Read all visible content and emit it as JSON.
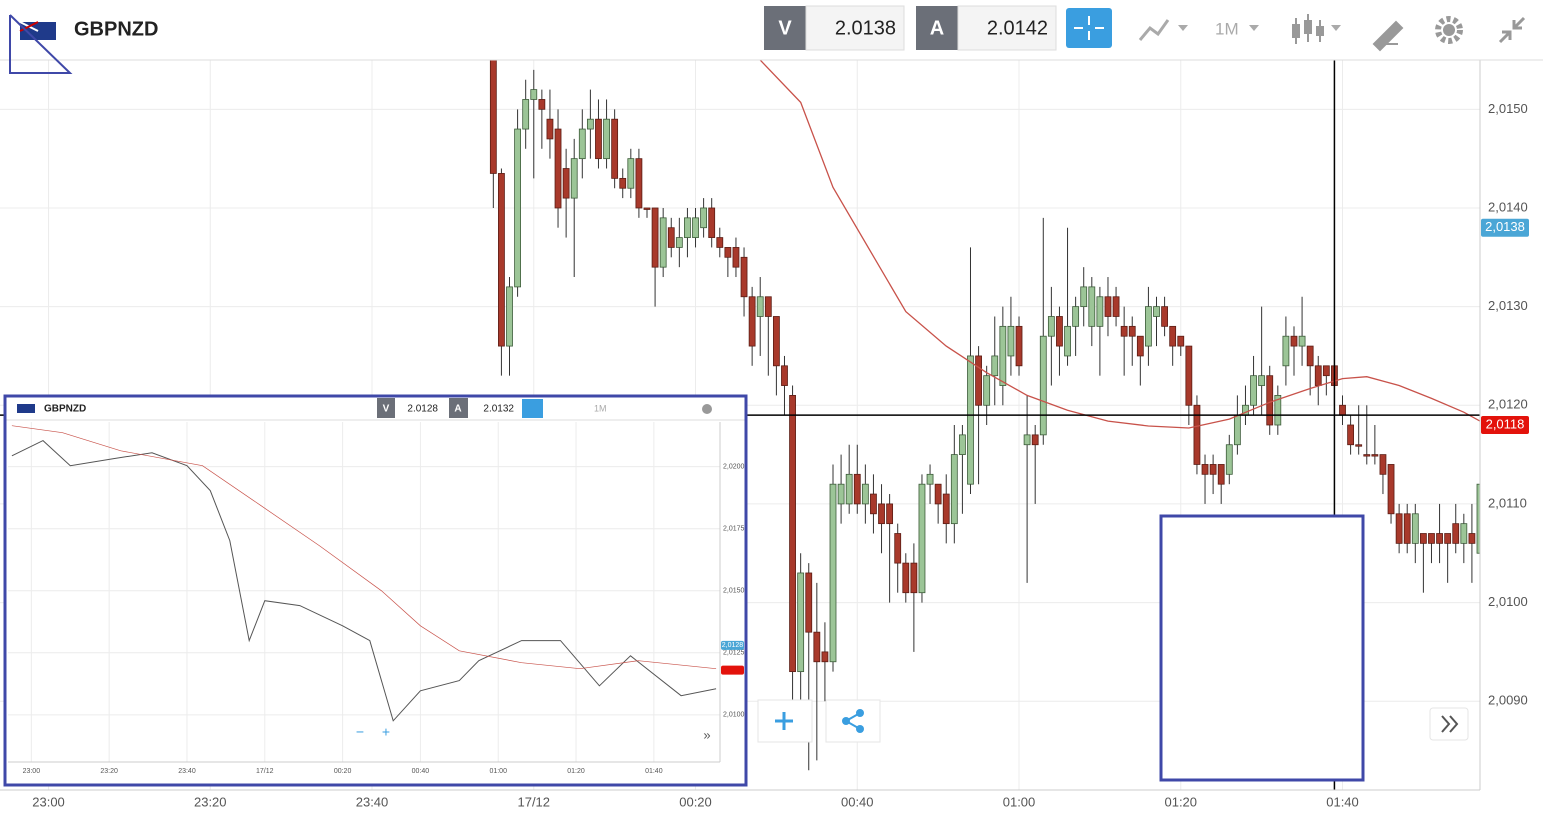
{
  "chart_data": [
    {
      "type": "candlestick",
      "symbol": "GBPNZD",
      "bid_label": "V",
      "bid": 2.0138,
      "ask_label": "A",
      "ask": 2.0142,
      "timeframe": "1M",
      "x": [
        "23:55",
        "23:56",
        "23:57",
        "23:58",
        "23:59",
        "00:00",
        "00:01",
        "00:02",
        "00:03",
        "00:04",
        "00:05",
        "00:06",
        "00:07",
        "00:08",
        "00:09",
        "00:10",
        "00:11",
        "00:12",
        "00:13",
        "00:14",
        "00:15",
        "00:16",
        "00:17",
        "00:18",
        "00:19",
        "00:20",
        "00:21",
        "00:22",
        "00:23",
        "00:24",
        "00:25",
        "00:26",
        "00:27",
        "00:28",
        "00:29",
        "00:30",
        "00:31",
        "00:32",
        "00:33",
        "00:34",
        "00:35",
        "00:36",
        "00:37",
        "00:38",
        "00:39",
        "00:40",
        "00:41",
        "00:42",
        "00:43",
        "00:44",
        "00:45",
        "00:46",
        "00:47",
        "00:48",
        "00:49",
        "00:50",
        "00:51",
        "00:52",
        "00:53",
        "00:54",
        "00:55",
        "00:56",
        "00:57",
        "00:58",
        "00:59",
        "01:00",
        "01:01",
        "01:02",
        "01:03",
        "01:04",
        "01:05",
        "01:06",
        "01:07",
        "01:08",
        "01:09",
        "01:10",
        "01:11",
        "01:12",
        "01:13",
        "01:14",
        "01:15",
        "01:16",
        "01:17",
        "01:18",
        "01:19",
        "01:20",
        "01:21",
        "01:22",
        "01:23",
        "01:24",
        "01:25",
        "01:26",
        "01:27",
        "01:28",
        "01:29",
        "01:30",
        "01:31",
        "01:32",
        "01:33",
        "01:34",
        "01:35",
        "01:36",
        "01:37",
        "01:38",
        "01:39",
        "01:40",
        "01:41",
        "01:42",
        "01:43",
        "01:44",
        "01:45",
        "01:46",
        "01:47",
        "01:48",
        "01:49",
        "01:50",
        "01:51",
        "01:52",
        "01:53",
        "01:54",
        "01:55",
        "01:56",
        "01:57"
      ],
      "open": [
        2.0155,
        2.01435,
        2.0126,
        2.0132,
        2.0148,
        2.0151,
        2.0151,
        2.0149,
        2.0148,
        2.0144,
        2.0141,
        2.0145,
        2.0148,
        2.0149,
        2.0145,
        2.0149,
        2.0143,
        2.0142,
        2.0145,
        2.014,
        2.014,
        2.0134,
        2.0138,
        2.0136,
        2.0137,
        2.0137,
        2.0138,
        2.014,
        2.0137,
        2.0136,
        2.0136,
        2.0135,
        2.0131,
        2.0129,
        2.0131,
        2.0129,
        2.0124,
        2.0121,
        2.0093,
        2.0103,
        2.0097,
        2.0095,
        2.0094,
        2.011,
        2.011,
        2.0113,
        2.011,
        2.0111,
        2.011,
        2.011,
        2.0107,
        2.0104,
        2.0104,
        2.0101,
        2.0112,
        2.0112,
        2.0111,
        2.0108,
        2.0115,
        2.0112,
        2.0125,
        2.012,
        2.0123,
        2.0122,
        2.0125,
        2.0128,
        2.0116,
        2.0117,
        2.0117,
        2.0127,
        2.0129,
        2.0125,
        2.0128,
        2.013,
        2.0128,
        2.0128,
        2.0131,
        2.0131,
        2.0128,
        2.0128,
        2.0127,
        2.0126,
        2.0129,
        2.013,
        2.0128,
        2.0127,
        2.0126,
        2.012,
        2.0114,
        2.0114,
        2.0114,
        2.0113,
        2.0116,
        2.0119,
        2.012,
        2.0122,
        2.0123,
        2.0118,
        2.0124,
        2.0127,
        2.0126,
        2.0126,
        2.0124,
        2.0124,
        2.0124,
        2.012,
        2.0118,
        2.0116,
        2.0115,
        2.0115,
        2.0115,
        2.0114,
        2.0109,
        2.0109,
        2.0106,
        2.0107,
        2.0107,
        2.0107,
        2.0107,
        2.0108,
        2.0106,
        2.0107,
        2.0105
      ],
      "high": [
        2.0155,
        2.0144,
        2.0133,
        2.015,
        2.0153,
        2.0154,
        2.0152,
        2.0152,
        2.015,
        2.0146,
        2.0147,
        2.015,
        2.0152,
        2.0151,
        2.0151,
        2.015,
        2.0144,
        2.0146,
        2.0146,
        2.014,
        2.014,
        2.014,
        2.0139,
        2.0139,
        2.014,
        2.014,
        2.0141,
        2.0141,
        2.0138,
        2.0136,
        2.0137,
        2.0136,
        2.0132,
        2.0133,
        2.0131,
        2.0129,
        2.0125,
        2.0122,
        2.0105,
        2.0104,
        2.0102,
        2.0098,
        2.0114,
        2.0115,
        2.0116,
        2.0116,
        2.0114,
        2.0113,
        2.0112,
        2.0111,
        2.0108,
        2.0105,
        2.0106,
        2.0113,
        2.0114,
        2.0112,
        2.0113,
        2.0118,
        2.0118,
        2.0136,
        2.0126,
        2.0124,
        2.0129,
        2.013,
        2.0131,
        2.0129,
        2.0121,
        2.0118,
        2.0139,
        2.0132,
        2.013,
        2.0138,
        2.0131,
        2.0134,
        2.0133,
        2.0132,
        2.0133,
        2.0132,
        2.013,
        2.0129,
        2.0127,
        2.0132,
        2.0131,
        2.0131,
        2.0128,
        2.0127,
        2.0126,
        2.0121,
        2.0115,
        2.0115,
        2.0114,
        2.0117,
        2.0121,
        2.0122,
        2.0125,
        2.013,
        2.0124,
        2.0122,
        2.0129,
        2.0128,
        2.0131,
        2.0126,
        2.0125,
        2.0124,
        2.0124,
        2.0121,
        2.0119,
        2.012,
        2.012,
        2.0118,
        2.0115,
        2.0114,
        2.011,
        2.011,
        2.011,
        2.0107,
        2.0107,
        2.011,
        2.0107,
        2.011,
        2.0109,
        2.011,
        2.0115
      ],
      "low": [
        2.014,
        2.0123,
        2.0123,
        2.0131,
        2.0146,
        2.0143,
        2.0146,
        2.0145,
        2.0138,
        2.0137,
        2.0133,
        2.0143,
        2.0145,
        2.0144,
        2.0144,
        2.0142,
        2.0141,
        2.0141,
        2.0139,
        2.0139,
        2.013,
        2.0133,
        2.0135,
        2.0134,
        2.0135,
        2.0136,
        2.0137,
        2.0136,
        2.0135,
        2.0133,
        2.0133,
        2.0129,
        2.0124,
        2.0125,
        2.0123,
        2.0121,
        2.0119,
        2.0087,
        2.0088,
        2.0083,
        2.0084,
        2.009,
        2.0093,
        2.0108,
        2.0109,
        2.0109,
        2.0108,
        2.0107,
        2.0105,
        2.01,
        2.0101,
        2.01,
        2.0095,
        2.01,
        2.011,
        2.0108,
        2.0106,
        2.0106,
        2.0109,
        2.0111,
        2.0112,
        2.0118,
        2.012,
        2.012,
        2.0123,
        2.0123,
        2.0102,
        2.011,
        2.0116,
        2.0122,
        2.0123,
        2.0124,
        2.0125,
        2.0128,
        2.0126,
        2.0123,
        2.0127,
        2.0128,
        2.0123,
        2.0124,
        2.0122,
        2.0124,
        2.0126,
        2.0127,
        2.0124,
        2.0125,
        2.0118,
        2.0113,
        2.011,
        2.0111,
        2.011,
        2.0112,
        2.0115,
        2.0118,
        2.0119,
        2.0119,
        2.0117,
        2.0117,
        2.0122,
        2.0123,
        2.0124,
        2.0121,
        2.012,
        2.0121,
        2.012,
        2.0118,
        2.0115,
        2.0115,
        2.0114,
        2.0114,
        2.0111,
        2.0108,
        2.0105,
        2.0105,
        2.0104,
        2.0101,
        2.0104,
        2.0104,
        2.0102,
        2.0105,
        2.0104,
        2.0102,
        2.0104
      ],
      "close": [
        2.01435,
        2.0126,
        2.0132,
        2.0148,
        2.0151,
        2.0152,
        2.015,
        2.0147,
        2.014,
        2.0141,
        2.0145,
        2.0148,
        2.0149,
        2.0145,
        2.0149,
        2.0143,
        2.0142,
        2.0145,
        2.014,
        2.014,
        2.0134,
        2.0139,
        2.0136,
        2.0137,
        2.0139,
        2.0139,
        2.014,
        2.0137,
        2.0136,
        2.0135,
        2.0134,
        2.0131,
        2.0126,
        2.0131,
        2.0129,
        2.0124,
        2.0122,
        2.0093,
        2.0103,
        2.0097,
        2.0094,
        2.0094,
        2.0112,
        2.0112,
        2.0113,
        2.011,
        2.0112,
        2.0109,
        2.0108,
        2.0108,
        2.0104,
        2.0101,
        2.0101,
        2.0112,
        2.0113,
        2.011,
        2.0108,
        2.0115,
        2.0117,
        2.0125,
        2.012,
        2.0123,
        2.0125,
        2.0128,
        2.0128,
        2.0124,
        2.0117,
        2.0116,
        2.0127,
        2.0129,
        2.0126,
        2.0128,
        2.013,
        2.0132,
        2.0132,
        2.0131,
        2.0129,
        2.0129,
        2.0127,
        2.0127,
        2.0125,
        2.013,
        2.013,
        2.0128,
        2.0126,
        2.0126,
        2.012,
        2.0114,
        2.0113,
        2.0113,
        2.0112,
        2.0116,
        2.0119,
        2.012,
        2.0123,
        2.0123,
        2.0118,
        2.0121,
        2.0127,
        2.0126,
        2.0127,
        2.0124,
        2.0122,
        2.0123,
        2.0122,
        2.0119,
        2.0116,
        2.0116,
        2.0115,
        2.0115,
        2.0113,
        2.0109,
        2.0106,
        2.0106,
        2.0109,
        2.0106,
        2.0106,
        2.0106,
        2.0106,
        2.0106,
        2.0108,
        2.0106,
        2.0112
      ],
      "up_color": "#9cc597",
      "down_color": "#a8392b",
      "ma": {
        "color": "#c8524a",
        "x": [
          "00:28",
          "00:33",
          "00:37",
          "00:42",
          "00:46",
          "00:51",
          "00:56",
          "01:01",
          "01:06",
          "01:11",
          "01:16",
          "01:21",
          "01:26",
          "01:31",
          "01:36",
          "01:40",
          "01:43",
          "01:47",
          "01:51",
          "01:55",
          "01:57"
        ],
        "values": [
          2.0155,
          2.01507,
          2.01421,
          2.01351,
          2.01295,
          2.0126,
          2.01233,
          2.0121,
          2.01195,
          2.01184,
          2.01179,
          2.01177,
          2.01186,
          2.01203,
          2.01217,
          2.01227,
          2.01229,
          2.0122,
          2.01207,
          2.01193,
          2.01184
        ]
      },
      "xlim": [
        "22:54",
        "01:57"
      ],
      "xticks": [
        "23:00",
        "23:20",
        "23:40",
        {
          "value": "00:00",
          "label": "17/12"
        },
        "00:20",
        "00:40",
        "01:00",
        "01:20",
        "01:40"
      ],
      "ylim": [
        2.0081,
        2.0155
      ],
      "yticks": [
        {
          "value": 2.009,
          "label": "2,0090"
        },
        {
          "value": 2.01,
          "label": "2,0100"
        },
        {
          "value": 2.011,
          "label": "2,0110"
        },
        {
          "value": 2.012,
          "label": "2,0120"
        },
        {
          "value": 2.013,
          "label": "2,0130"
        },
        {
          "value": 2.014,
          "label": "2,0140"
        },
        {
          "value": 2.015,
          "label": "2,0150"
        }
      ],
      "grid": true,
      "price_tags": [
        {
          "value": 2.0138,
          "label": "2,0138",
          "color": "#4aa6d6"
        },
        {
          "value": 2.0118,
          "label": "2,0118",
          "color": "#e3120b"
        }
      ],
      "crosshair": {
        "x": "01:39",
        "y": 2.0119
      }
    },
    {
      "type": "line",
      "symbol": "GBPNZD",
      "bid_label": "V",
      "bid": 2.0128,
      "ask_label": "A",
      "ask": 2.0132,
      "timeframe": "1M",
      "x": [
        "22:55",
        "23:03",
        "23:10",
        "23:21",
        "23:31",
        "23:40",
        "23:46",
        "23:51",
        "23:56",
        "00:00",
        "00:09",
        "00:20",
        "00:27",
        "00:33",
        "00:40",
        "00:50",
        "00:55",
        "01:06",
        "01:16",
        "01:26",
        "01:34",
        "01:47",
        "01:56"
      ],
      "values": [
        2.02044,
        2.02105,
        2.02004,
        2.02032,
        2.02056,
        2.02004,
        2.01903,
        2.01702,
        2.01299,
        2.0146,
        2.0144,
        2.01359,
        2.01299,
        2.00976,
        2.01097,
        2.01138,
        2.01218,
        2.01299,
        2.01299,
        2.01117,
        2.01238,
        2.01077,
        2.01105
      ],
      "color": "#555555",
      "ma": {
        "color": "#c8524a",
        "x": [
          "22:55",
          "23:08",
          "23:23",
          "23:44",
          "23:59",
          "00:14",
          "00:30",
          "00:40",
          "00:50",
          "01:06",
          "01:21",
          "01:36",
          "01:56"
        ],
        "values": [
          2.02165,
          2.02137,
          2.02064,
          2.02004,
          2.01843,
          2.01682,
          2.015,
          2.01359,
          2.01258,
          2.0121,
          2.01186,
          2.01218,
          2.01186
        ]
      },
      "xlim": [
        "22:54",
        "01:57"
      ],
      "xticks": [
        "23:00",
        "23:20",
        "23:40",
        {
          "value": "00:00",
          "label": "17/12"
        },
        "00:20",
        "00:40",
        "01:00",
        "01:20",
        "01:40"
      ],
      "ylim": [
        2.0081,
        2.0218
      ],
      "yticks": [
        {
          "value": 2.01,
          "label": "2,0100"
        },
        {
          "value": 2.0125,
          "label": "2,0125"
        },
        {
          "value": 2.015,
          "label": "2,0150"
        },
        {
          "value": 2.0175,
          "label": "2,0175"
        },
        {
          "value": 2.02,
          "label": "2,0200"
        }
      ],
      "grid": true,
      "price_tags": [
        {
          "value": 2.0128,
          "label": "2,0128",
          "color": "#4aa6d6"
        },
        {
          "value": 2.0118,
          "color": "#e3120b"
        }
      ]
    }
  ]
}
